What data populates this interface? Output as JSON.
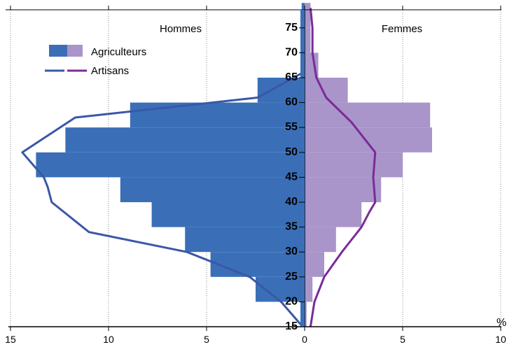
{
  "chart_data": {
    "type": "bar",
    "orientation": "horizontal-pyramid",
    "left_label": "Hommes",
    "right_label": "Femmes",
    "x_unit": "%",
    "x_ticks_left": [
      "15",
      "10",
      "5",
      "0"
    ],
    "x_ticks_right": [
      "5",
      "10"
    ],
    "xlim_left": [
      0,
      15
    ],
    "xlim_right": [
      0,
      10
    ],
    "age_ticks": [
      "15",
      "20",
      "25",
      "30",
      "35",
      "40",
      "45",
      "50",
      "55",
      "60",
      "65",
      "70",
      "75"
    ],
    "ylim": [
      15,
      80
    ],
    "grid": "vertical dotted",
    "legend": {
      "position": "top-left",
      "entries": [
        {
          "label": "Agriculteurs",
          "colors": [
            "#3a6fb8",
            "#a995c9"
          ],
          "kind": "bars"
        },
        {
          "label": "Artisans",
          "colors": [
            "#3a57a8",
            "#7a2b99"
          ],
          "kind": "lines"
        }
      ]
    },
    "colors": {
      "men_bar": "#3a6fb8",
      "women_bar": "#a995c9",
      "men_line": "#3a57a8",
      "women_line": "#7a2b99"
    },
    "series": [
      {
        "name": "Agriculteurs",
        "sex": "Hommes",
        "type": "bar",
        "bins": [
          [
            15,
            20,
            0.1
          ],
          [
            20,
            25,
            2.5
          ],
          [
            25,
            30,
            4.8
          ],
          [
            30,
            35,
            6.1
          ],
          [
            35,
            40,
            7.8
          ],
          [
            40,
            45,
            9.4
          ],
          [
            45,
            50,
            13.7
          ],
          [
            50,
            55,
            12.2
          ],
          [
            55,
            60,
            8.9
          ],
          [
            60,
            65,
            2.4
          ],
          [
            65,
            70,
            0.2
          ],
          [
            70,
            75,
            0.15
          ],
          [
            75,
            80,
            0.15
          ]
        ]
      },
      {
        "name": "Agriculteurs",
        "sex": "Femmes",
        "type": "bar",
        "bins": [
          [
            15,
            20,
            0.1
          ],
          [
            20,
            25,
            0.4
          ],
          [
            25,
            30,
            1.0
          ],
          [
            30,
            35,
            1.6
          ],
          [
            35,
            40,
            2.9
          ],
          [
            40,
            45,
            3.9
          ],
          [
            45,
            50,
            5.0
          ],
          [
            50,
            55,
            6.5
          ],
          [
            55,
            60,
            6.4
          ],
          [
            60,
            65,
            2.2
          ],
          [
            65,
            70,
            0.7
          ],
          [
            70,
            75,
            0.3
          ],
          [
            75,
            80,
            0.3
          ]
        ]
      },
      {
        "name": "Artisans",
        "sex": "Hommes",
        "type": "line",
        "points": [
          [
            15,
            0.1
          ],
          [
            20,
            1.2
          ],
          [
            25,
            2.8
          ],
          [
            30,
            6.0
          ],
          [
            34,
            11.0
          ],
          [
            40,
            12.9
          ],
          [
            43,
            13.1
          ],
          [
            45,
            13.3
          ],
          [
            50,
            14.4
          ],
          [
            57,
            11.7
          ],
          [
            61,
            2.4
          ],
          [
            66,
            0.1
          ]
        ]
      },
      {
        "name": "Artisans",
        "sex": "Femmes",
        "type": "line",
        "points": [
          [
            15,
            0.3
          ],
          [
            20,
            0.5
          ],
          [
            25,
            1.0
          ],
          [
            30,
            1.9
          ],
          [
            35,
            2.9
          ],
          [
            38,
            3.3
          ],
          [
            40,
            3.6
          ],
          [
            45,
            3.5
          ],
          [
            50,
            3.6
          ],
          [
            56,
            2.4
          ],
          [
            61,
            1.1
          ],
          [
            65,
            0.6
          ],
          [
            70,
            0.4
          ],
          [
            75,
            0.4
          ],
          [
            79,
            0.3
          ]
        ]
      }
    ]
  }
}
